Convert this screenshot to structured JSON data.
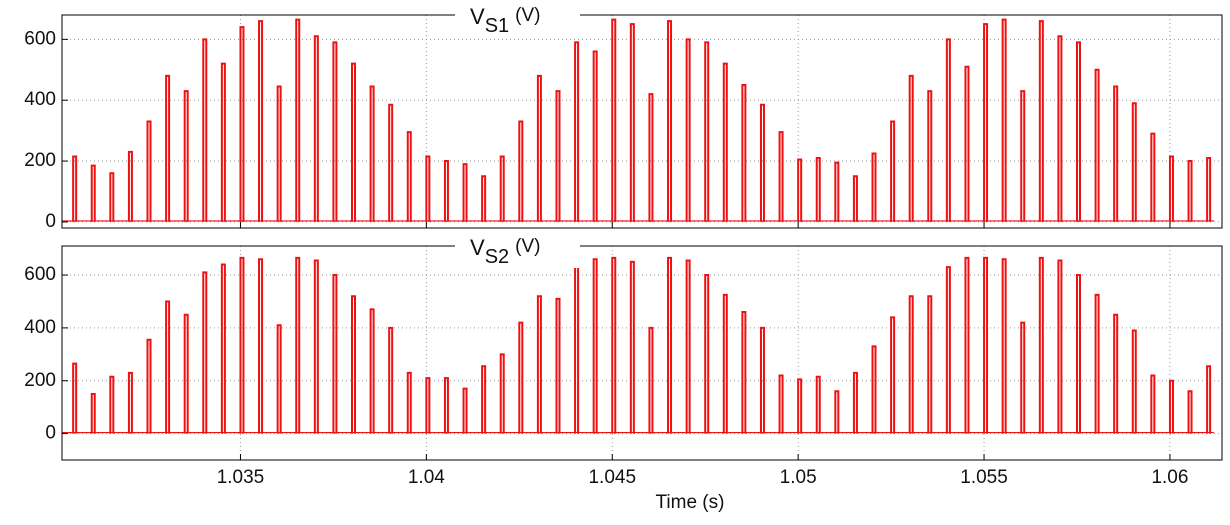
{
  "chart_data": [
    {
      "type": "spike",
      "title": "V",
      "title_subscript": "S1",
      "title_unit": "(V)",
      "color": "#ee1111",
      "grid": true,
      "xlim": [
        1.0302,
        1.0614
      ],
      "ylim": [
        -20,
        680
      ],
      "xticks": [
        1.035,
        1.04,
        1.045,
        1.05,
        1.055,
        1.06
      ],
      "yticks": [
        0,
        200,
        400,
        600
      ],
      "x": [
        1.0305,
        1.031,
        1.0315,
        1.032,
        1.0325,
        1.033,
        1.0335,
        1.034,
        1.0345,
        1.035,
        1.0355,
        1.036,
        1.0365,
        1.037,
        1.0375,
        1.038,
        1.0385,
        1.039,
        1.0395,
        1.04,
        1.0405,
        1.041,
        1.0415,
        1.042,
        1.0425,
        1.043,
        1.0435,
        1.044,
        1.0445,
        1.045,
        1.0455,
        1.046,
        1.0465,
        1.047,
        1.0475,
        1.048,
        1.0485,
        1.049,
        1.0495,
        1.05,
        1.0505,
        1.051,
        1.0515,
        1.052,
        1.0525,
        1.053,
        1.0535,
        1.054,
        1.0545,
        1.055,
        1.0555,
        1.056,
        1.0565,
        1.057,
        1.0575,
        1.058,
        1.0585,
        1.059,
        1.0595,
        1.06,
        1.0605,
        1.061
      ],
      "values": [
        215,
        185,
        160,
        230,
        330,
        480,
        430,
        600,
        520,
        640,
        660,
        445,
        665,
        610,
        590,
        520,
        445,
        385,
        295,
        215,
        200,
        190,
        150,
        215,
        330,
        480,
        430,
        590,
        560,
        665,
        650,
        420,
        660,
        600,
        590,
        520,
        450,
        385,
        295,
        205,
        210,
        195,
        150,
        225,
        330,
        480,
        430,
        600,
        510,
        650,
        665,
        430,
        660,
        610,
        590,
        500,
        445,
        390,
        290,
        215,
        200,
        210
      ]
    },
    {
      "type": "spike",
      "title": "V",
      "title_subscript": "S2",
      "title_unit": "(V)",
      "color": "#ee1111",
      "grid": true,
      "xlabel": "Time (s)",
      "xlim": [
        1.0302,
        1.0614
      ],
      "ylim": [
        -100,
        710
      ],
      "xticks": [
        1.035,
        1.04,
        1.045,
        1.05,
        1.055,
        1.06
      ],
      "yticks": [
        0,
        200,
        400,
        600
      ],
      "x": [
        1.0305,
        1.031,
        1.0315,
        1.032,
        1.0325,
        1.033,
        1.0335,
        1.034,
        1.0345,
        1.035,
        1.0355,
        1.036,
        1.0365,
        1.037,
        1.0375,
        1.038,
        1.0385,
        1.039,
        1.0395,
        1.04,
        1.0405,
        1.041,
        1.0415,
        1.042,
        1.0425,
        1.043,
        1.0435,
        1.044,
        1.0445,
        1.045,
        1.0455,
        1.046,
        1.0465,
        1.047,
        1.0475,
        1.048,
        1.0485,
        1.049,
        1.0495,
        1.05,
        1.0505,
        1.051,
        1.0515,
        1.052,
        1.0525,
        1.053,
        1.0535,
        1.054,
        1.0545,
        1.055,
        1.0555,
        1.056,
        1.0565,
        1.057,
        1.0575,
        1.058,
        1.0585,
        1.059,
        1.0595,
        1.06,
        1.0605,
        1.061
      ],
      "values": [
        265,
        150,
        215,
        230,
        355,
        500,
        450,
        610,
        640,
        665,
        660,
        410,
        665,
        655,
        600,
        520,
        470,
        400,
        230,
        210,
        210,
        170,
        255,
        300,
        420,
        520,
        510,
        630,
        660,
        665,
        650,
        400,
        665,
        655,
        600,
        525,
        460,
        400,
        220,
        205,
        215,
        160,
        230,
        330,
        440,
        520,
        520,
        630,
        665,
        665,
        660,
        420,
        665,
        655,
        600,
        525,
        450,
        390,
        220,
        200,
        160,
        255
      ]
    }
  ]
}
